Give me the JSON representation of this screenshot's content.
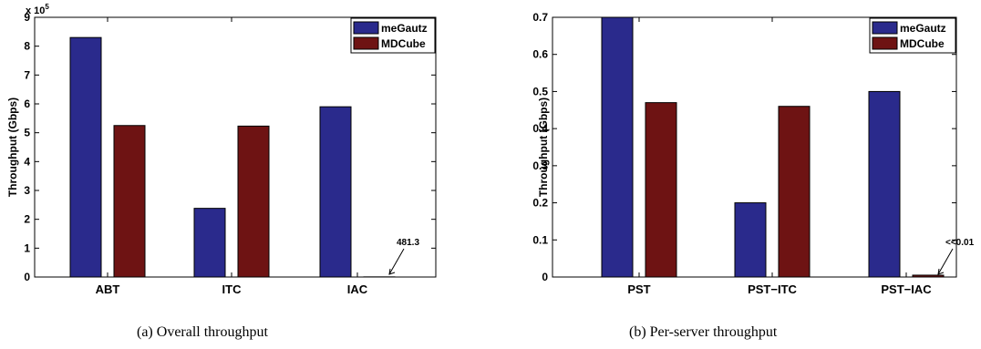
{
  "colors": {
    "meGautz": "#2a2a8c",
    "MDCube": "#6e1313",
    "axis": "#000000"
  },
  "charts": [
    {
      "caption": "(a)  Overall throughput",
      "chart_data": {
        "type": "bar",
        "ylabel": "Throughput (Gbps)",
        "xlabel": "",
        "y_multiplier_label": "x 10",
        "y_multiplier_exp": "5",
        "ylim": [
          0,
          9
        ],
        "yticks": [
          "0",
          "1",
          "2",
          "3",
          "4",
          "5",
          "6",
          "7",
          "8",
          "9"
        ],
        "grid": false,
        "legend": "top-right",
        "categories": [
          "ABT",
          "ITC",
          "IAC"
        ],
        "series": [
          {
            "name": "meGautz",
            "values": [
              8.3,
              2.38,
              5.9
            ]
          },
          {
            "name": "MDCube",
            "values": [
              5.25,
              5.23,
              0.0048
            ]
          }
        ],
        "annotation": {
          "text": "481.3",
          "category_index": 2,
          "series_index": 1
        }
      }
    },
    {
      "caption": "(b)  Per-server throughput",
      "chart_data": {
        "type": "bar",
        "ylabel": "Throughput (Gbps)",
        "xlabel": "",
        "ylim": [
          0,
          0.7
        ],
        "yticks": [
          "0",
          "0.1",
          "0.2",
          "0.3",
          "0.4",
          "0.5",
          "0.6",
          "0.7"
        ],
        "grid": false,
        "legend": "top-right",
        "categories": [
          "PST",
          "PST−ITC",
          "PST−IAC"
        ],
        "series": [
          {
            "name": "meGautz",
            "values": [
              0.7,
              0.2,
              0.5
            ]
          },
          {
            "name": "MDCube",
            "values": [
              0.47,
              0.46,
              0.005
            ]
          }
        ],
        "annotation": {
          "text": "<<0.01",
          "category_index": 2,
          "series_index": 1
        }
      }
    }
  ]
}
